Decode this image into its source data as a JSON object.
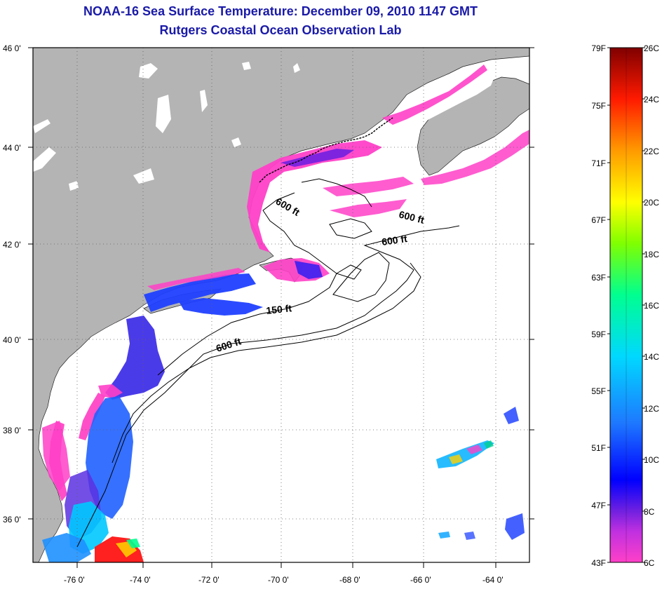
{
  "title": {
    "line1": "NOAA-16 Sea Surface Temperature:  December 09, 2010 1147 GMT",
    "line2": "Rutgers Coastal Ocean Observation Lab"
  },
  "axes": {
    "lat_labels": [
      "46 0'",
      "44 0'",
      "42 0'",
      "40 0'",
      "38 0'",
      "36 0'"
    ],
    "lon_labels": [
      "-76 0'",
      "-74 0'",
      "-72 0'",
      "-70 0'",
      "-68 0'",
      "-66 0'",
      "-64 0'"
    ]
  },
  "contour_labels": [
    "600 ft",
    "600 ft",
    "600 ft",
    "150 ft",
    "600 ft"
  ],
  "colorbar": {
    "fahrenheit": [
      "79F",
      "75F",
      "71F",
      "67F",
      "63F",
      "59F",
      "55F",
      "51F",
      "47F",
      "43F"
    ],
    "celsius": [
      "26C",
      "24C",
      "22C",
      "20C",
      "18C",
      "16C",
      "14C",
      "12C",
      "10C",
      "8C",
      "6C"
    ]
  },
  "colors": {
    "land": "#b4b4b4",
    "ocean": "#ffffff",
    "title": "#1a1aa8",
    "scale": [
      "#ff3fd0",
      "#8a2be2",
      "#0000ff",
      "#1e90ff",
      "#00e5ff",
      "#00ff7f",
      "#ffff00",
      "#ff8c00",
      "#ff0000",
      "#8b0000"
    ]
  }
}
